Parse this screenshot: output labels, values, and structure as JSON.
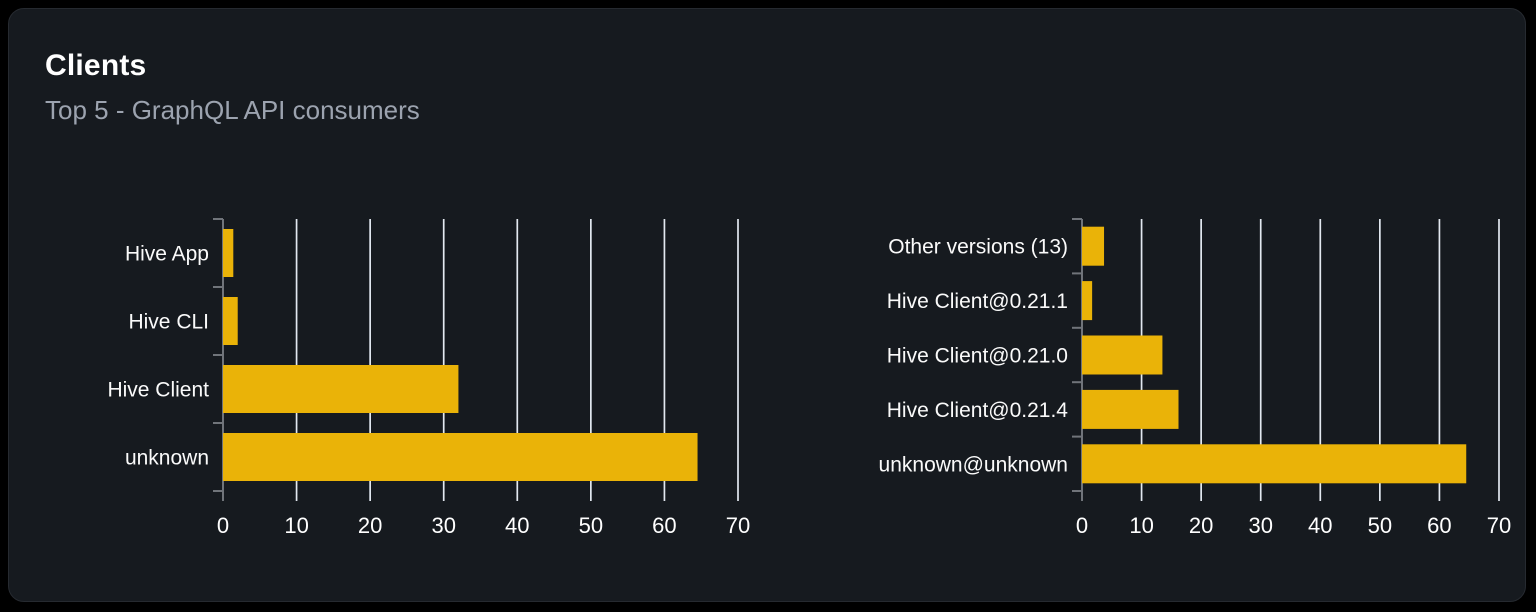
{
  "card": {
    "title": "Clients",
    "subtitle": "Top 5 - GraphQL API consumers"
  },
  "colors": {
    "page_bg": "#000000",
    "card_bg": "#161a1f",
    "card_border": "#262a30",
    "bar": "#eab308",
    "grid": "#e2e8f0",
    "axis": "#70747a",
    "tick_label": "#ffffff",
    "category_label": "#fafafa",
    "subtitle": "#9ca3af"
  },
  "chart_data": [
    {
      "type": "bar",
      "orientation": "horizontal",
      "name": "clients-by-name",
      "title": "",
      "categories": [
        "Hive App",
        "Hive CLI",
        "Hive Client",
        "unknown"
      ],
      "values": [
        1.4,
        2,
        32,
        64.5
      ],
      "xlim": [
        0,
        70
      ],
      "xticks": [
        0,
        10,
        20,
        30,
        40,
        50,
        60,
        70
      ],
      "grid": true,
      "legend": false
    },
    {
      "type": "bar",
      "orientation": "horizontal",
      "name": "clients-by-version",
      "title": "",
      "categories": [
        "Other versions (13)",
        "Hive Client@0.21.1",
        "Hive Client@0.21.0",
        "Hive Client@0.21.4",
        "unknown@unknown"
      ],
      "values": [
        3.7,
        1.7,
        13.5,
        16.2,
        64.5
      ],
      "xlim": [
        0,
        70
      ],
      "xticks": [
        0,
        10,
        20,
        30,
        40,
        50,
        60,
        70
      ],
      "grid": true,
      "legend": false
    }
  ]
}
